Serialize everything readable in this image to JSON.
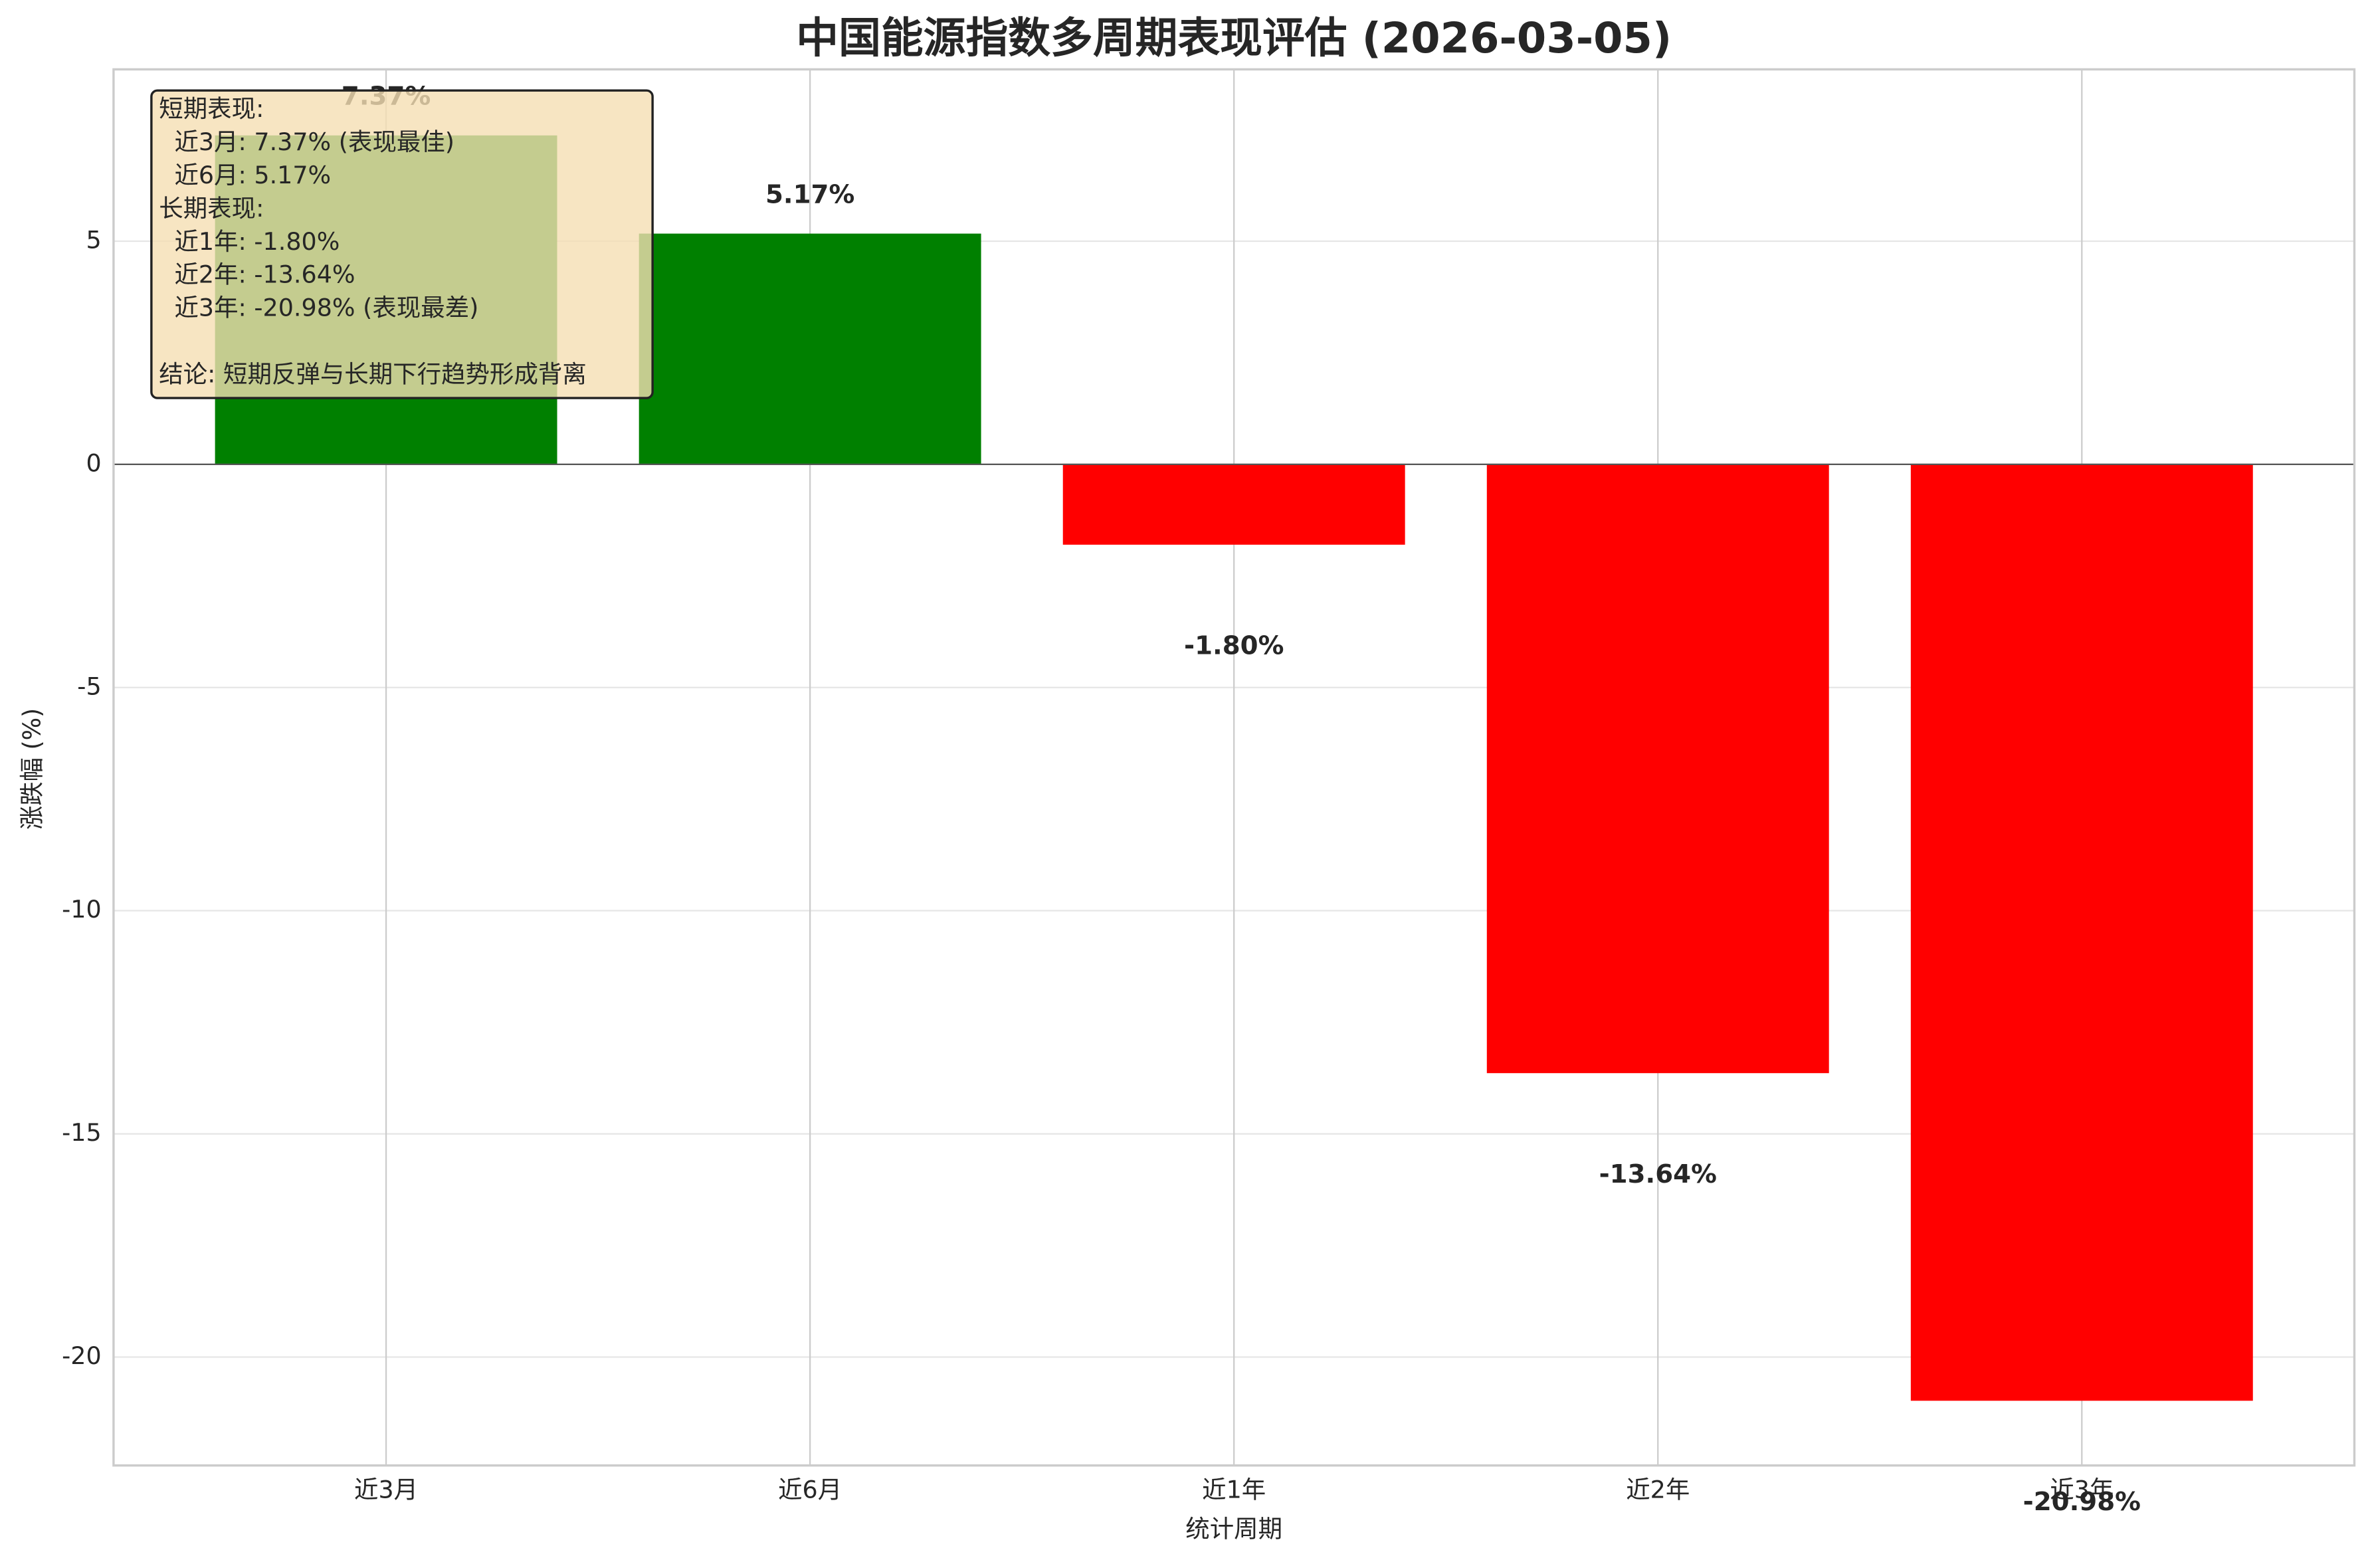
{
  "chart_data": {
    "type": "bar",
    "title": "中国能源指数多周期表现评估 (2026-03-05)",
    "x_label": "统计周期",
    "y_label": "涨跌幅 (%)",
    "categories": [
      "近3月",
      "近6月",
      "近1年",
      "近2年",
      "近3年"
    ],
    "values": [
      7.37,
      5.17,
      -1.8,
      -13.64,
      -20.98
    ],
    "value_labels": [
      "7.37%",
      "5.17%",
      "-1.80%",
      "-13.64%",
      "-20.98%"
    ],
    "colors": [
      "#008000",
      "#008000",
      "#ff0000",
      "#ff0000",
      "#ff0000"
    ],
    "ylim": [
      -22.43,
      8.85
    ],
    "yticks": [
      -20,
      -15,
      -10,
      -5,
      0,
      5
    ],
    "grid": true,
    "annotation": {
      "lines": [
        "短期表现:",
        "  近3月: 7.37% (表现最佳)",
        "  近6月: 5.17%",
        "长期表现:",
        "  近1年: -1.80%",
        "  近2年: -13.64%",
        "  近3年: -20.98% (表现最差)"
      ],
      "conclusion": "结论: 短期反弹与长期下行趋势形成背离"
    }
  }
}
